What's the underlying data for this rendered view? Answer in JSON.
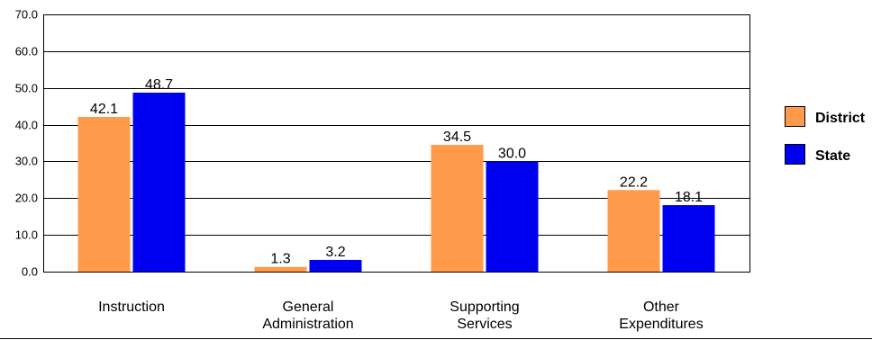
{
  "chart_data": {
    "type": "bar",
    "categories": [
      [
        "Instruction"
      ],
      [
        "General",
        "Administration"
      ],
      [
        "Supporting",
        "Services"
      ],
      [
        "Other",
        "Expenditures"
      ]
    ],
    "series": [
      {
        "name": "District",
        "values": [
          42.1,
          1.3,
          34.5,
          22.2
        ],
        "color": "#FF9A4A"
      },
      {
        "name": "State",
        "values": [
          48.7,
          3.2,
          30.0,
          18.1
        ],
        "color": "#0000F0"
      }
    ],
    "ylim": [
      0,
      70
    ],
    "yticks": [
      "0.0",
      "10.0",
      "20.0",
      "30.0",
      "40.0",
      "50.0",
      "60.0",
      "70.0"
    ],
    "grid": true,
    "legend_position": "right",
    "title": "",
    "xlabel": "",
    "ylabel": ""
  }
}
